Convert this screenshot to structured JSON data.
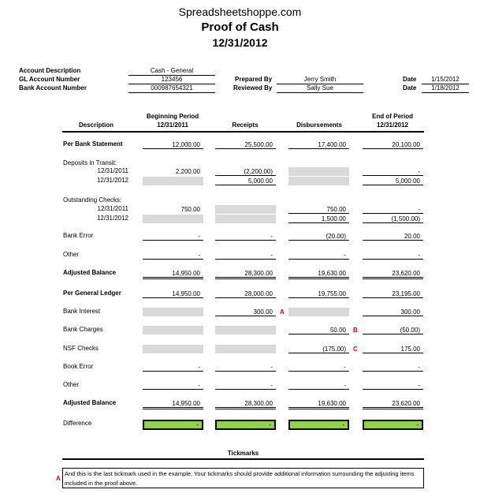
{
  "header": {
    "site": "Spreadsheetshoppe.com",
    "title": "Proof of Cash",
    "date": "12/31/2012"
  },
  "info": {
    "account_description_label": "Account Description",
    "account_description": "Cash - General",
    "gl_label": "GL Account Number",
    "gl": "123456",
    "bank_label": "Bank Account Number",
    "bank": "000987654321",
    "prepared_label": "Prepared By",
    "prepared": "Jerry Smith",
    "reviewed_label": "Reviewed By",
    "reviewed": "Sally Sue",
    "date1_label": "Date",
    "date1": "1/15/2012",
    "date2_label": "Date",
    "date2": "1/18/2012"
  },
  "columns": {
    "description": "Description",
    "beginning_1": "Beginning Period",
    "beginning_2": "12/31/2011",
    "receipts": "Receipts",
    "disbursements": "Disbursements",
    "end_1": "End of Period",
    "end_2": "12/31/2012"
  },
  "rows": [
    {
      "label": "Per Bank Statement",
      "bold": true,
      "cells": [
        {
          "v": "12,000.00"
        },
        {
          "v": "25,500.00"
        },
        {
          "v": "17,400.00"
        },
        {
          "v": "20,100.00"
        }
      ]
    },
    {
      "label": "Deposits in Transit:",
      "section": true
    },
    {
      "label": "12/31/2011",
      "sub": true,
      "cells": [
        {
          "v": "2,200.00",
          "nou": true
        },
        {
          "v": "(2,200.00)"
        },
        {
          "g": true
        },
        {
          "v": "-"
        }
      ]
    },
    {
      "label": "12/31/2012",
      "sub": true,
      "cells": [
        {
          "g": true
        },
        {
          "v": "5,000.00"
        },
        {
          "g": true
        },
        {
          "v": "5,000.00"
        }
      ]
    },
    {
      "label": "Outstanding Checks:",
      "section": true
    },
    {
      "label": "12/31/2011",
      "sub": true,
      "cells": [
        {
          "v": "750.00",
          "nou": true
        },
        {
          "g": true
        },
        {
          "v": "750.00"
        },
        {
          "v": "-"
        }
      ]
    },
    {
      "label": "12/31/2012",
      "sub": true,
      "cells": [
        {
          "g": true
        },
        {
          "g": true
        },
        {
          "v": "1,500.00"
        },
        {
          "v": "(1,500.00)"
        }
      ]
    },
    {
      "label": "Bank Error",
      "cells": [
        {
          "v": "-"
        },
        {
          "v": "-"
        },
        {
          "v": "(20.00)"
        },
        {
          "v": "20.00"
        }
      ]
    },
    {
      "label": "Other",
      "cells": [
        {
          "v": "-"
        },
        {
          "v": "-"
        },
        {
          "v": "-"
        },
        {
          "v": "-"
        }
      ]
    },
    {
      "label": "Adjusted Balance",
      "bold": true,
      "double": true,
      "cells": [
        {
          "v": "14,950.00"
        },
        {
          "v": "28,300.00"
        },
        {
          "v": "19,630.00"
        },
        {
          "v": "23,620.00"
        }
      ]
    },
    {
      "label": "Per General Ledger",
      "bold": true,
      "cells": [
        {
          "v": "14,950.00"
        },
        {
          "v": "28,000.00"
        },
        {
          "v": "19,755.00"
        },
        {
          "v": "23,195.00"
        }
      ]
    },
    {
      "label": "Bank Interest",
      "cells": [
        {
          "g": true
        },
        {
          "v": "300.00",
          "tick": "A"
        },
        {
          "g": true
        },
        {
          "v": "300.00"
        }
      ]
    },
    {
      "label": "Bank Charges",
      "cells": [
        {
          "g": true
        },
        {
          "g": true
        },
        {
          "v": "50.00",
          "tick": "B"
        },
        {
          "v": "(50.00)"
        }
      ]
    },
    {
      "label": "NSF Checks",
      "cells": [
        {
          "g": true
        },
        {
          "g": true
        },
        {
          "v": "(175.00)",
          "tick": "C"
        },
        {
          "v": "175.00"
        }
      ]
    },
    {
      "label": "Book Error",
      "cells": [
        {
          "v": "-"
        },
        {
          "v": "-"
        },
        {
          "v": "-"
        },
        {
          "v": "-"
        }
      ]
    },
    {
      "label": "Other",
      "cells": [
        {
          "v": "-"
        },
        {
          "v": "-"
        },
        {
          "v": "-"
        },
        {
          "v": "-"
        }
      ]
    },
    {
      "label": "Adjusted Balance",
      "bold": true,
      "double": true,
      "cells": [
        {
          "v": "14,950.00"
        },
        {
          "v": "28,300.00"
        },
        {
          "v": "19,630.00"
        },
        {
          "v": "23,620.00"
        }
      ]
    },
    {
      "label": "Difference",
      "diff": true,
      "cells": [
        {
          "v": "-"
        },
        {
          "v": "-"
        },
        {
          "v": "-"
        },
        {
          "v": "-"
        }
      ]
    }
  ],
  "tickmarks": {
    "title": "Tickmarks",
    "mark": "A",
    "note": "And this is the last tickmark used in the example.  Your tickmarks should provide additional information surrounding the adjusting items included in the proof above."
  },
  "colors": {
    "shaded": "#d9d9d9",
    "difference": "#92d050",
    "tickmark": "#e00000"
  }
}
